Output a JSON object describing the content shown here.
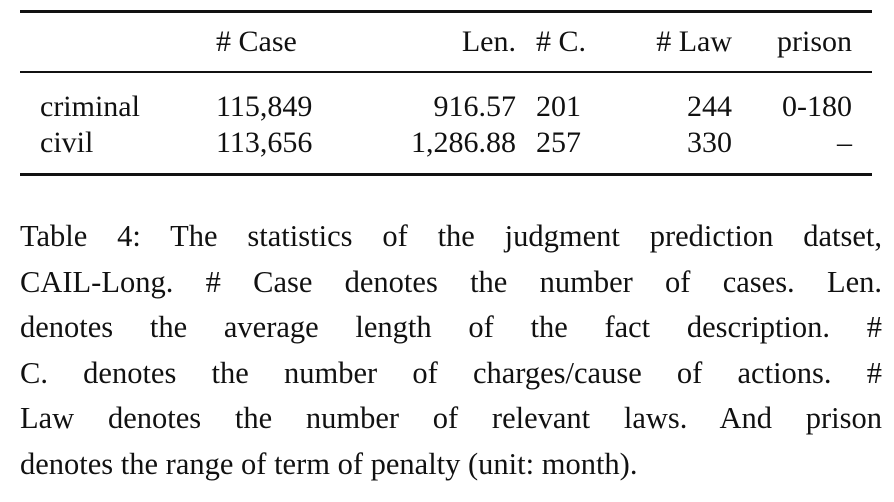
{
  "table": {
    "headers": [
      "",
      "# Case",
      "Len.",
      "# C.",
      "# Law",
      "prison"
    ],
    "rows": [
      {
        "label": "criminal",
        "cases": "115,849",
        "len": "916.57",
        "charges": "201",
        "laws": "244",
        "prison": "0-180"
      },
      {
        "label": "civil",
        "cases": "113,656",
        "len": "1,286.88",
        "charges": "257",
        "laws": "330",
        "prison": "–"
      }
    ]
  },
  "caption": {
    "lines": [
      "Table 4: The statistics of the judgment prediction datset,",
      "CAIL-Long. # Case denotes the number of cases. Len.",
      "denotes the average length of the fact description. #",
      "C. denotes the number of charges/cause of actions. #",
      "Law denotes the number of relevant laws. And prison",
      "denotes the range of term of penalty (unit: month)."
    ]
  }
}
